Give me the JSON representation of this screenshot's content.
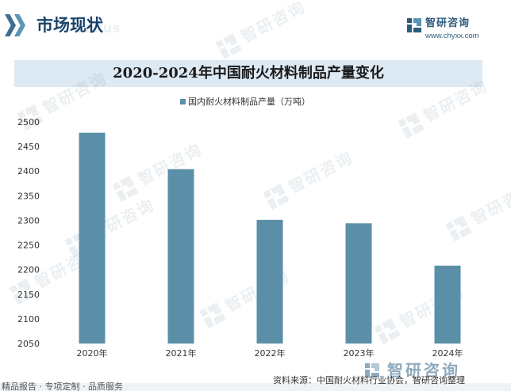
{
  "header": {
    "title": "市场现状",
    "subtitle_ghost": "status",
    "brand_name": "智研咨询",
    "brand_url": "www.chyxx.com"
  },
  "watermark": {
    "text": "智研咨询"
  },
  "chart_data": {
    "type": "bar",
    "title": "2020-2024年中国耐火材料制品产量变化",
    "categories": [
      "2020年",
      "2021年",
      "2022年",
      "2023年",
      "2024年"
    ],
    "series": [
      {
        "name": "国内耐火材料制品产量（万吨）",
        "values": [
          2478,
          2404,
          2301,
          2294,
          2208
        ]
      }
    ],
    "ylim": [
      2050,
      2500
    ],
    "yticks": [
      2050,
      2100,
      2150,
      2200,
      2250,
      2300,
      2350,
      2400,
      2450,
      2500
    ],
    "xlabel": "",
    "ylabel": "",
    "grid": false,
    "legend_position": "top",
    "bar_color": "#5b8fa8"
  },
  "footer": {
    "brand_name": "智研咨询",
    "source": "资料来源：中国耐火材料行业协会，智研咨询整理",
    "tagline": "精品报告 · 专项定制 · 品质服务"
  },
  "colors": {
    "accent_dark": "#17436a",
    "accent_light": "#5a95b6",
    "title_bar_bg": "#dde9f3"
  }
}
